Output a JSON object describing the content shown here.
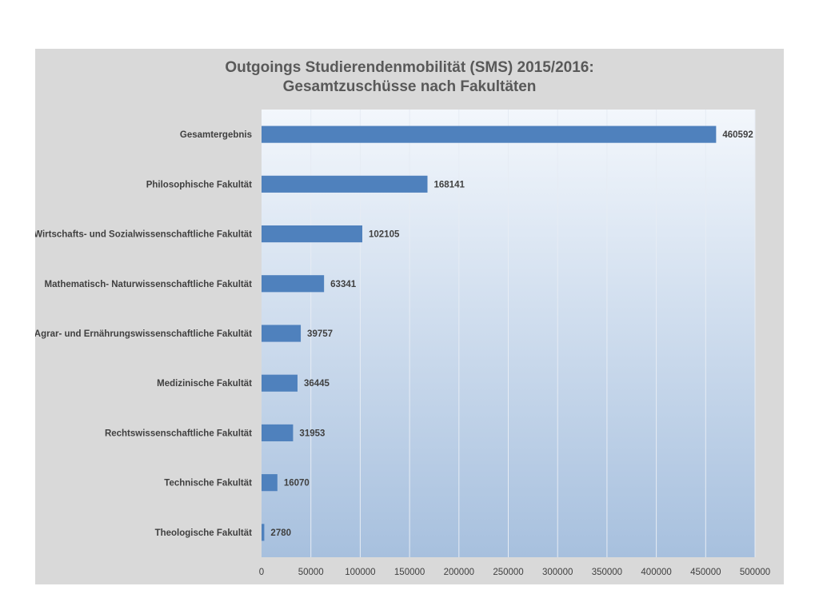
{
  "chart_data": {
    "type": "bar",
    "orientation": "horizontal",
    "title": "Outgoings Studierendenmobilität (SMS) 2015/2016:",
    "subtitle": "Gesamtzuschüsse nach Fakultäten",
    "xlabel": "",
    "ylabel": "",
    "categories": [
      "Gesamtergebnis",
      "Philosophische Fakultät",
      "Wirtschafts- und Sozialwissenschaftliche Fakultät",
      "Mathematisch- Naturwissenschaftliche Fakultät",
      "Agrar- und Ernährungswissenschaftliche Fakultät",
      "Medizinische Fakultät",
      "Rechtswissenschaftliche Fakultät",
      "Technische Fakultät",
      "Theologische Fakultät"
    ],
    "values": [
      460592,
      168141,
      102105,
      63341,
      39757,
      36445,
      31953,
      16070,
      2780
    ],
    "xlim": [
      0,
      500000
    ],
    "x_ticks": [
      0,
      50000,
      100000,
      150000,
      200000,
      250000,
      300000,
      350000,
      400000,
      450000,
      500000
    ],
    "grid": true,
    "data_labels": true,
    "legend": "none",
    "colors": {
      "bar": "#4f81bd",
      "frame_background": "#d9d9d9",
      "plot_gradient_top": "#f3f7fc",
      "plot_gradient_bottom": "#a7c0de",
      "gridline": "#e6ecf4",
      "text": "#404040",
      "title": "#595959"
    }
  }
}
